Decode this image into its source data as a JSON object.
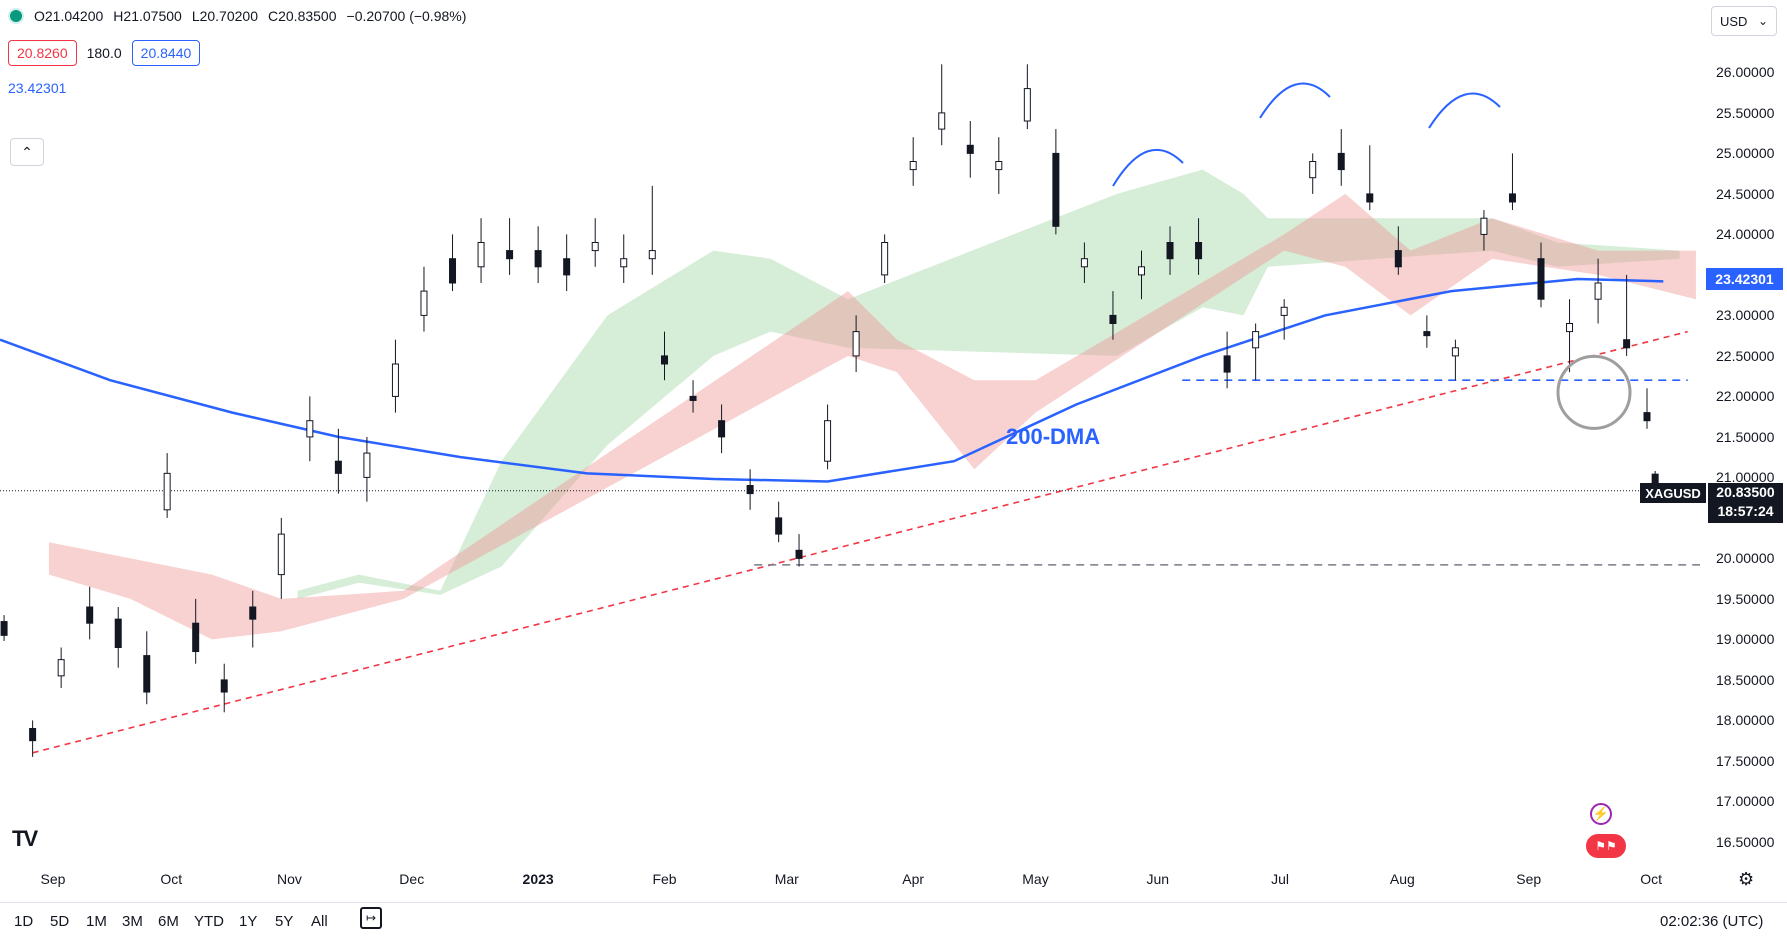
{
  "header": {
    "open": "O21.04200",
    "high": "H21.07500",
    "low": "L20.70200",
    "close": "C20.83500",
    "change": "−0.20700 (−0.98%)",
    "bid": "20.8260",
    "spread": "180.0",
    "ask": "20.8440",
    "ma_value": "23.42301",
    "collapse_icon": "chevron-up-icon",
    "currency": "USD"
  },
  "axis": {
    "y_ticks": [
      "26.00000",
      "25.50000",
      "25.00000",
      "24.50000",
      "24.00000",
      "23.50000",
      "23.00000",
      "22.50000",
      "22.00000",
      "21.50000",
      "21.00000",
      "20.50000",
      "20.00000",
      "19.50000",
      "19.00000",
      "18.50000",
      "18.00000",
      "17.50000",
      "17.00000",
      "16.50000"
    ],
    "x_ticks": [
      "Sep",
      "Oct",
      "Nov",
      "Dec",
      "2023",
      "Feb",
      "Mar",
      "Apr",
      "May",
      "Jun",
      "Jul",
      "Aug",
      "Sep",
      "Oct"
    ]
  },
  "tags": {
    "ma_tag": "23.42301",
    "symbol": "XAGUSD",
    "price": "20.83500",
    "countdown": "18:57:24"
  },
  "annotations": {
    "dma_label": "200-DMA"
  },
  "toolbar": {
    "timeframes": [
      "1D",
      "5D",
      "1M",
      "3M",
      "6M",
      "YTD",
      "1Y",
      "5Y",
      "All"
    ],
    "time": "02:02:36 (UTC)",
    "logo": "TV"
  },
  "colors": {
    "up": "#131722",
    "down": "#131722",
    "ma": "#2962ff",
    "cloud_bull": "#a5d6a7",
    "cloud_bear": "#ef9a9a",
    "trendline": "#f23645",
    "support": "#787b86"
  },
  "chart_data": {
    "type": "candlestick",
    "title": "",
    "xlabel": "",
    "ylabel": "",
    "ylim": [
      16.4,
      26.4
    ],
    "x_range": [
      "2022-08-24",
      "2023-10-15"
    ],
    "ohlc": [
      [
        "2022-08-25",
        19.22,
        19.3,
        18.98,
        19.05
      ],
      [
        "2022-09-01",
        17.9,
        18.0,
        17.55,
        17.75
      ],
      [
        "2022-09-08",
        18.55,
        18.9,
        18.4,
        18.75
      ],
      [
        "2022-09-15",
        19.4,
        19.65,
        19.0,
        19.2
      ],
      [
        "2022-09-22",
        19.25,
        19.4,
        18.65,
        18.9
      ],
      [
        "2022-09-29",
        18.8,
        19.1,
        18.2,
        18.35
      ],
      [
        "2022-10-04",
        20.6,
        21.3,
        20.5,
        21.05
      ],
      [
        "2022-10-11",
        19.2,
        19.5,
        18.7,
        18.85
      ],
      [
        "2022-10-18",
        18.5,
        18.7,
        18.1,
        18.35
      ],
      [
        "2022-10-25",
        19.4,
        19.6,
        18.9,
        19.25
      ],
      [
        "2022-11-01",
        19.8,
        20.5,
        19.5,
        20.3
      ],
      [
        "2022-11-08",
        21.5,
        22.0,
        21.2,
        21.7
      ],
      [
        "2022-11-15",
        21.2,
        21.6,
        20.8,
        21.05
      ],
      [
        "2022-11-22",
        21.0,
        21.5,
        20.7,
        21.3
      ],
      [
        "2022-11-29",
        22.0,
        22.7,
        21.8,
        22.4
      ],
      [
        "2022-12-06",
        23.0,
        23.6,
        22.8,
        23.3
      ],
      [
        "2022-12-13",
        23.7,
        24.0,
        23.3,
        23.4
      ],
      [
        "2022-12-20",
        23.6,
        24.2,
        23.4,
        23.9
      ],
      [
        "2022-12-27",
        23.8,
        24.2,
        23.5,
        23.7
      ],
      [
        "2023-01-03",
        23.8,
        24.1,
        23.4,
        23.6
      ],
      [
        "2023-01-10",
        23.7,
        24.0,
        23.3,
        23.5
      ],
      [
        "2023-01-17",
        23.8,
        24.2,
        23.6,
        23.9
      ],
      [
        "2023-01-24",
        23.6,
        24.0,
        23.4,
        23.7
      ],
      [
        "2023-01-31",
        23.7,
        24.6,
        23.5,
        23.8
      ],
      [
        "2023-02-03",
        22.5,
        22.8,
        22.2,
        22.4
      ],
      [
        "2023-02-10",
        22.0,
        22.2,
        21.8,
        21.95
      ],
      [
        "2023-02-17",
        21.7,
        21.9,
        21.3,
        21.5
      ],
      [
        "2023-02-24",
        20.9,
        21.1,
        20.6,
        20.8
      ],
      [
        "2023-03-03",
        20.5,
        20.7,
        20.2,
        20.3
      ],
      [
        "2023-03-08",
        20.1,
        20.3,
        19.9,
        20.0
      ],
      [
        "2023-03-15",
        21.2,
        21.9,
        21.1,
        21.7
      ],
      [
        "2023-03-22",
        22.5,
        23.0,
        22.3,
        22.8
      ],
      [
        "2023-03-29",
        23.5,
        24.0,
        23.4,
        23.9
      ],
      [
        "2023-04-05",
        24.8,
        25.2,
        24.6,
        24.9
      ],
      [
        "2023-04-12",
        25.3,
        26.1,
        25.1,
        25.5
      ],
      [
        "2023-04-19",
        25.1,
        25.4,
        24.7,
        25.0
      ],
      [
        "2023-04-26",
        24.8,
        25.2,
        24.5,
        24.9
      ],
      [
        "2023-05-03",
        25.4,
        26.1,
        25.3,
        25.8
      ],
      [
        "2023-05-10",
        25.0,
        25.3,
        24.0,
        24.1
      ],
      [
        "2023-05-17",
        23.6,
        23.9,
        23.4,
        23.7
      ],
      [
        "2023-05-24",
        23.0,
        23.3,
        22.7,
        22.9
      ],
      [
        "2023-05-31",
        23.5,
        23.8,
        23.2,
        23.6
      ],
      [
        "2023-06-07",
        23.9,
        24.1,
        23.5,
        23.7
      ],
      [
        "2023-06-14",
        23.9,
        24.2,
        23.5,
        23.7
      ],
      [
        "2023-06-21",
        22.5,
        22.8,
        22.1,
        22.3
      ],
      [
        "2023-06-28",
        22.6,
        22.9,
        22.2,
        22.8
      ],
      [
        "2023-07-05",
        23.0,
        23.2,
        22.7,
        23.1
      ],
      [
        "2023-07-12",
        24.7,
        25.0,
        24.5,
        24.9
      ],
      [
        "2023-07-19",
        25.0,
        25.3,
        24.6,
        24.8
      ],
      [
        "2023-07-26",
        24.5,
        25.1,
        24.3,
        24.4
      ],
      [
        "2023-08-02",
        23.8,
        24.1,
        23.5,
        23.6
      ],
      [
        "2023-08-09",
        22.8,
        23.0,
        22.6,
        22.75
      ],
      [
        "2023-08-16",
        22.5,
        22.7,
        22.2,
        22.6
      ],
      [
        "2023-08-23",
        24.0,
        24.3,
        23.8,
        24.2
      ],
      [
        "2023-08-30",
        24.5,
        25.0,
        24.3,
        24.4
      ],
      [
        "2023-09-06",
        23.7,
        23.9,
        23.1,
        23.2
      ],
      [
        "2023-09-13",
        22.8,
        23.2,
        22.3,
        22.9
      ],
      [
        "2023-09-20",
        23.2,
        23.7,
        22.9,
        23.4
      ],
      [
        "2023-09-27",
        22.7,
        23.5,
        22.5,
        22.6
      ],
      [
        "2023-10-02",
        21.8,
        22.1,
        21.6,
        21.7
      ],
      [
        "2023-10-04",
        21.04,
        21.08,
        20.7,
        20.84
      ]
    ],
    "series": [
      {
        "name": "200-DMA",
        "points": [
          [
            "2022-08-24",
            22.7
          ],
          [
            "2022-09-20",
            22.2
          ],
          [
            "2022-10-20",
            21.8
          ],
          [
            "2022-11-15",
            21.5
          ],
          [
            "2022-12-15",
            21.25
          ],
          [
            "2023-01-15",
            21.05
          ],
          [
            "2023-02-15",
            20.98
          ],
          [
            "2023-03-15",
            20.95
          ],
          [
            "2023-04-15",
            21.2
          ],
          [
            "2023-05-15",
            21.9
          ],
          [
            "2023-06-15",
            22.5
          ],
          [
            "2023-07-15",
            23.0
          ],
          [
            "2023-08-15",
            23.3
          ],
          [
            "2023-09-15",
            23.45
          ],
          [
            "2023-10-06",
            23.42
          ]
        ]
      },
      {
        "name": "Ichimoku cloud bullish",
        "band": [
          [
            "2022-11-05",
            19.5,
            19.6
          ],
          [
            "2022-11-20",
            19.7,
            19.8
          ],
          [
            "2022-12-10",
            19.55,
            19.6
          ],
          [
            "2022-12-25",
            19.9,
            21.2
          ],
          [
            "2023-01-20",
            21.4,
            23.0
          ],
          [
            "2023-02-15",
            22.5,
            23.8
          ],
          [
            "2023-03-01",
            22.8,
            23.7
          ],
          [
            "2023-03-20",
            22.6,
            23.2
          ],
          [
            "2023-05-25",
            22.5,
            24.5
          ],
          [
            "2023-06-15",
            23.1,
            24.8
          ],
          [
            "2023-06-25",
            23.0,
            24.5
          ],
          [
            "2023-07-01",
            23.6,
            24.2
          ],
          [
            "2023-08-25",
            23.8,
            24.2
          ],
          [
            "2023-09-10",
            23.6,
            23.9
          ],
          [
            "2023-10-10",
            23.7,
            23.8
          ]
        ]
      },
      {
        "name": "Ichimoku cloud bearish",
        "band": [
          [
            "2022-09-05",
            19.8,
            20.2
          ],
          [
            "2022-09-25",
            19.5,
            20.0
          ],
          [
            "2022-10-15",
            19.0,
            19.8
          ],
          [
            "2022-11-01",
            19.1,
            19.5
          ],
          [
            "2022-12-01",
            19.5,
            19.6
          ],
          [
            "2023-03-20",
            22.5,
            23.3
          ],
          [
            "2023-04-01",
            22.3,
            22.7
          ],
          [
            "2023-04-20",
            21.1,
            22.2
          ],
          [
            "2023-05-05",
            21.8,
            22.2
          ],
          [
            "2023-07-05",
            23.8,
            24.0
          ],
          [
            "2023-07-20",
            23.6,
            24.5
          ],
          [
            "2023-08-05",
            23.0,
            23.8
          ],
          [
            "2023-08-25",
            23.7,
            24.2
          ],
          [
            "2023-09-20",
            23.5,
            23.8
          ],
          [
            "2023-10-14",
            23.2,
            23.8
          ]
        ]
      },
      {
        "name": "Rising trendline",
        "points": [
          [
            "2022-09-01",
            17.6
          ],
          [
            "2023-10-12",
            22.8
          ]
        ]
      },
      {
        "name": "Support 22.20",
        "points": [
          [
            "2023-06-10",
            22.2
          ],
          [
            "2023-10-12",
            22.2
          ]
        ]
      },
      {
        "name": "Support 19.92",
        "points": [
          [
            "2023-02-25",
            19.92
          ],
          [
            "2023-10-15",
            19.92
          ]
        ]
      }
    ],
    "last_price": 20.835,
    "grid": false
  }
}
